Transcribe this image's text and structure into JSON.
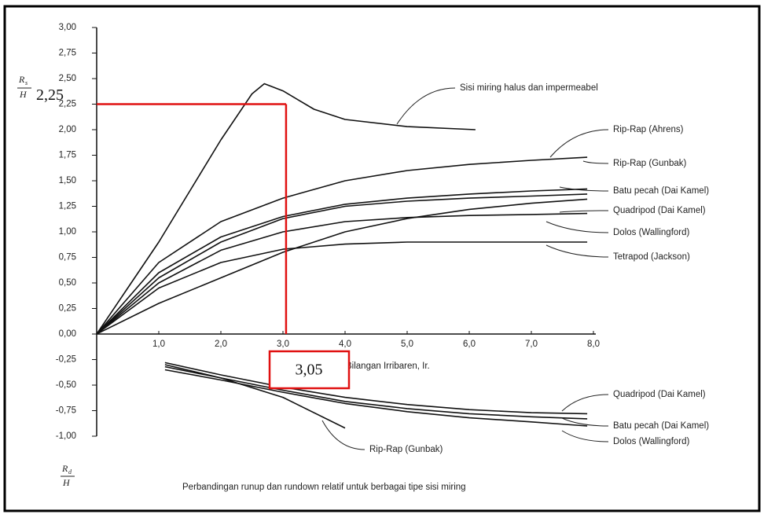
{
  "chart_data": {
    "type": "line",
    "caption": "Perbandingan runup dan rundown relatif untuk berbagai tipe sisi miring",
    "xlabel": "Bilangan Irribaren, Ir.",
    "ylabel_runup": {
      "numerator": "R",
      "subscript": "s",
      "denominator": "H"
    },
    "ylabel_rundown": {
      "numerator": "R",
      "subscript": "d",
      "denominator": "H"
    },
    "xlim": [
      0,
      8
    ],
    "ylim": [
      -1,
      3
    ],
    "xticks": [
      {
        "value": 1,
        "label": "1,0"
      },
      {
        "value": 2,
        "label": "2,0"
      },
      {
        "value": 3,
        "label": "3,0"
      },
      {
        "value": 4,
        "label": "4,0"
      },
      {
        "value": 5,
        "label": "5,0"
      },
      {
        "value": 6,
        "label": "6,0"
      },
      {
        "value": 7,
        "label": "7,0"
      },
      {
        "value": 8,
        "label": "8,0"
      }
    ],
    "yticks": [
      {
        "value": -1,
        "label": "-1,00"
      },
      {
        "value": -0.75,
        "label": "-0,75"
      },
      {
        "value": -0.5,
        "label": "-0,50"
      },
      {
        "value": -0.25,
        "label": "-0,25"
      },
      {
        "value": 0,
        "label": "0,00"
      },
      {
        "value": 0.25,
        "label": "0,25"
      },
      {
        "value": 0.5,
        "label": "0,50"
      },
      {
        "value": 0.75,
        "label": "0,75"
      },
      {
        "value": 1,
        "label": "1,00"
      },
      {
        "value": 1.25,
        "label": "1,25"
      },
      {
        "value": 1.5,
        "label": "1,50"
      },
      {
        "value": 1.75,
        "label": "1,75"
      },
      {
        "value": 2,
        "label": "2,00"
      },
      {
        "value": 2.25,
        "label": "2,25"
      },
      {
        "value": 2.5,
        "label": "2,50"
      },
      {
        "value": 2.75,
        "label": "2,75"
      },
      {
        "value": 3,
        "label": "3,00"
      }
    ],
    "series": [
      {
        "name": "Sisi miring halus dan impermeabel",
        "color": "#111111",
        "x": [
          0,
          0.5,
          1,
          1.5,
          2,
          2.5,
          2.7,
          3,
          3.5,
          4,
          5,
          6.1
        ],
        "values": [
          0,
          0.45,
          0.9,
          1.4,
          1.9,
          2.35,
          2.45,
          2.38,
          2.2,
          2.1,
          2.03,
          2.0
        ]
      },
      {
        "name": "Rip-Rap (Ahrens)",
        "color": "#111111",
        "x": [
          0,
          1,
          2,
          3,
          4,
          5,
          6,
          7,
          7.9
        ],
        "values": [
          0,
          0.7,
          1.1,
          1.33,
          1.5,
          1.6,
          1.66,
          1.7,
          1.73
        ]
      },
      {
        "name": "Rip-Rap (Gunbak)",
        "color": "#111111",
        "x": [
          0,
          1,
          2,
          3,
          4,
          5,
          6,
          7,
          7.9
        ],
        "values": [
          0,
          0.6,
          0.95,
          1.15,
          1.27,
          1.33,
          1.37,
          1.4,
          1.42
        ]
      },
      {
        "name": "Batu pecah (Dai Kamel)",
        "color": "#111111",
        "x": [
          0,
          1,
          2,
          3,
          4,
          5,
          6,
          7,
          7.9
        ],
        "values": [
          0,
          0.55,
          0.9,
          1.13,
          1.25,
          1.3,
          1.33,
          1.35,
          1.37
        ]
      },
      {
        "name": "Quadripod (Dai Kamel)",
        "color": "#111111",
        "x": [
          0,
          1,
          2,
          3,
          4,
          5,
          6,
          7,
          7.9
        ],
        "values": [
          0,
          0.3,
          0.55,
          0.8,
          1.0,
          1.13,
          1.22,
          1.28,
          1.32
        ]
      },
      {
        "name": "Dolos (Wallingford)",
        "color": "#111111",
        "x": [
          0,
          1,
          2,
          3,
          4,
          5,
          6,
          7,
          7.9
        ],
        "values": [
          0,
          0.5,
          0.82,
          1.0,
          1.1,
          1.14,
          1.16,
          1.17,
          1.18
        ]
      },
      {
        "name": "Tetrapod (Jackson)",
        "color": "#111111",
        "x": [
          0,
          1,
          2,
          3,
          4,
          5,
          6,
          7,
          7.9
        ],
        "values": [
          0,
          0.45,
          0.7,
          0.83,
          0.88,
          0.9,
          0.9,
          0.9,
          0.9
        ]
      },
      {
        "name": "Quadripod (Dai Kamel)",
        "color": "#111111",
        "x": [
          1.1,
          2,
          3,
          4,
          5,
          6,
          7,
          7.9
        ],
        "values": [
          -0.28,
          -0.4,
          -0.52,
          -0.62,
          -0.69,
          -0.74,
          -0.77,
          -0.78
        ]
      },
      {
        "name": "Batu pecah (Dai Kamel)",
        "color": "#111111",
        "x": [
          1.1,
          2,
          3,
          4,
          5,
          6,
          7,
          7.9
        ],
        "values": [
          -0.32,
          -0.43,
          -0.55,
          -0.66,
          -0.73,
          -0.78,
          -0.81,
          -0.83
        ]
      },
      {
        "name": "Dolos (Wallingford)",
        "color": "#111111",
        "x": [
          1.1,
          2,
          3,
          4,
          5,
          6,
          7,
          7.9
        ],
        "values": [
          -0.35,
          -0.45,
          -0.57,
          -0.68,
          -0.76,
          -0.82,
          -0.86,
          -0.9
        ]
      },
      {
        "name": "Rip-Rap (Gunbak)",
        "color": "#111111",
        "x": [
          1.1,
          2,
          3,
          4
        ],
        "values": [
          -0.3,
          -0.43,
          -0.62,
          -0.92
        ]
      }
    ],
    "annotation": {
      "x": 3.05,
      "y": 2.25,
      "x_label": "3,05",
      "y_label": "2,25",
      "color": "#e01010"
    }
  }
}
